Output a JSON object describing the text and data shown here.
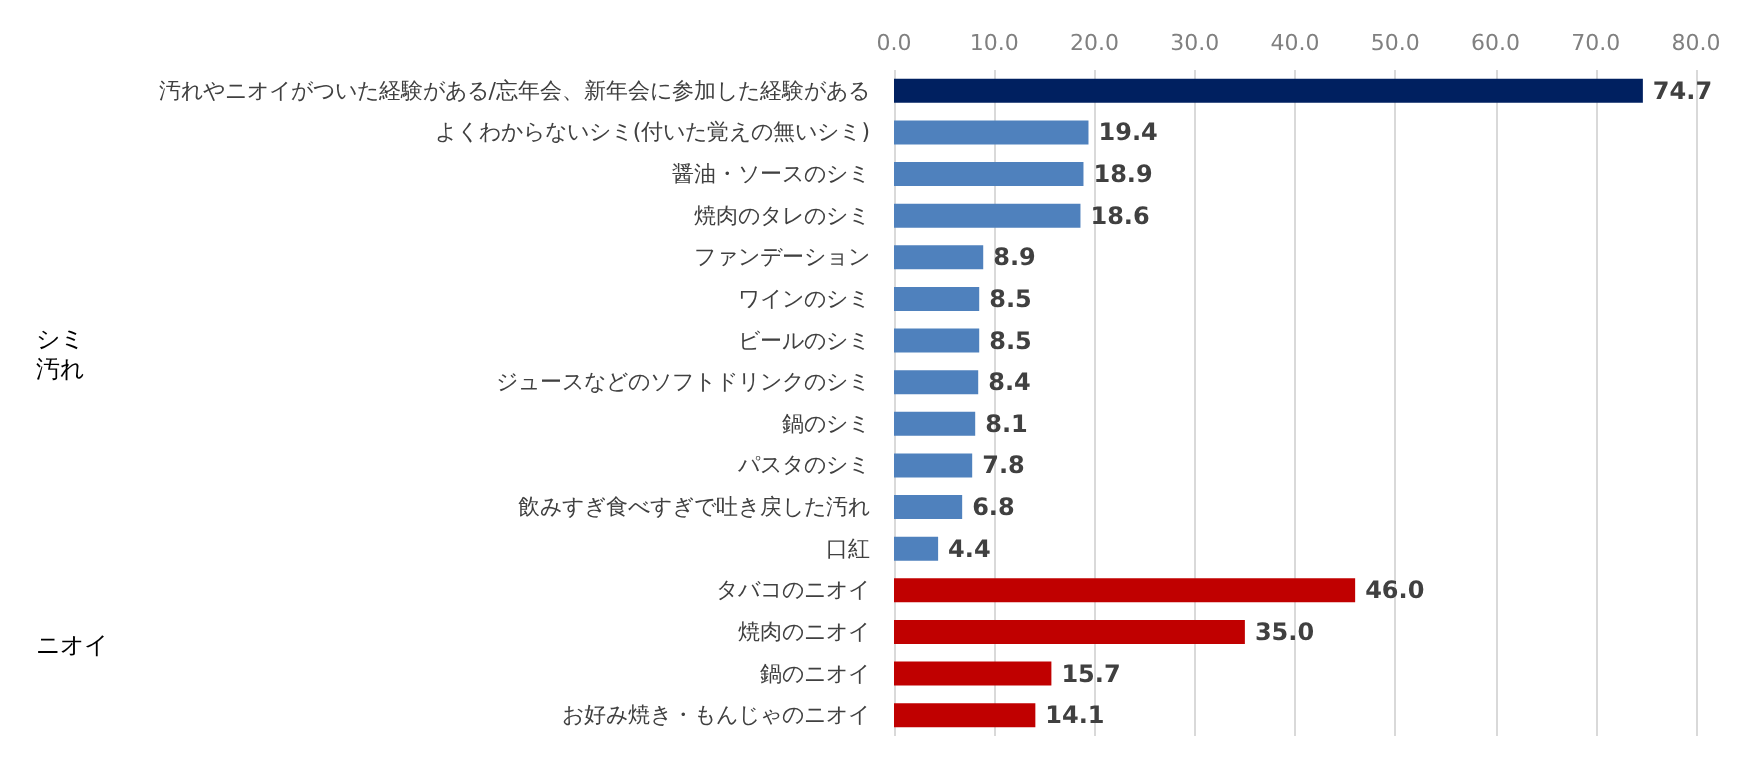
{
  "chart_data": {
    "type": "bar",
    "orientation": "horizontal",
    "categories": [
      "汚れやニオイがついた経験がある/忘年会、新年会に参加した経験がある",
      "よくわからないシミ(付いた覚えの無いシミ)",
      "醤油・ソースのシミ",
      "焼肉のタレのシミ",
      "ファンデーション",
      "ワインのシミ",
      "ビールのシミ",
      "ジュースなどのソフトドリンクのシミ",
      "鍋のシミ",
      "パスタのシミ",
      "飲みすぎ食べすぎで吐き戻した汚れ",
      "口紅",
      "タバコのニオイ",
      "焼肉のニオイ",
      "鍋のニオイ",
      "お好み焼き・もんじゃのニオイ"
    ],
    "values": [
      74.7,
      19.4,
      18.9,
      18.6,
      8.9,
      8.5,
      8.5,
      8.4,
      8.1,
      7.8,
      6.8,
      4.4,
      46.0,
      35.0,
      15.7,
      14.1
    ],
    "value_labels": [
      "74.7",
      "19.4",
      "18.9",
      "18.6",
      "8.9",
      "8.5",
      "8.5",
      "8.4",
      "8.1",
      "7.8",
      "6.8",
      "4.4",
      "46.0",
      "35.0",
      "15.7",
      "14.1"
    ],
    "colors": [
      "#002060",
      "#4f81bd",
      "#4f81bd",
      "#4f81bd",
      "#4f81bd",
      "#4f81bd",
      "#4f81bd",
      "#4f81bd",
      "#4f81bd",
      "#4f81bd",
      "#4f81bd",
      "#4f81bd",
      "#c00000",
      "#c00000",
      "#c00000",
      "#c00000"
    ],
    "xlim": [
      0,
      80
    ],
    "xticks": [
      {
        "value": 0,
        "label": "0.0"
      },
      {
        "value": 10,
        "label": "10.0"
      },
      {
        "value": 20,
        "label": "20.0"
      },
      {
        "value": 30,
        "label": "30.0"
      },
      {
        "value": 40,
        "label": "40.0"
      },
      {
        "value": 50,
        "label": "50.0"
      },
      {
        "value": 60,
        "label": "60.0"
      },
      {
        "value": 70,
        "label": "70.0"
      },
      {
        "value": 80,
        "label": "80.0"
      }
    ],
    "grid": "x",
    "annotations": [
      "シミ",
      "汚れ",
      "ニオイ"
    ]
  }
}
